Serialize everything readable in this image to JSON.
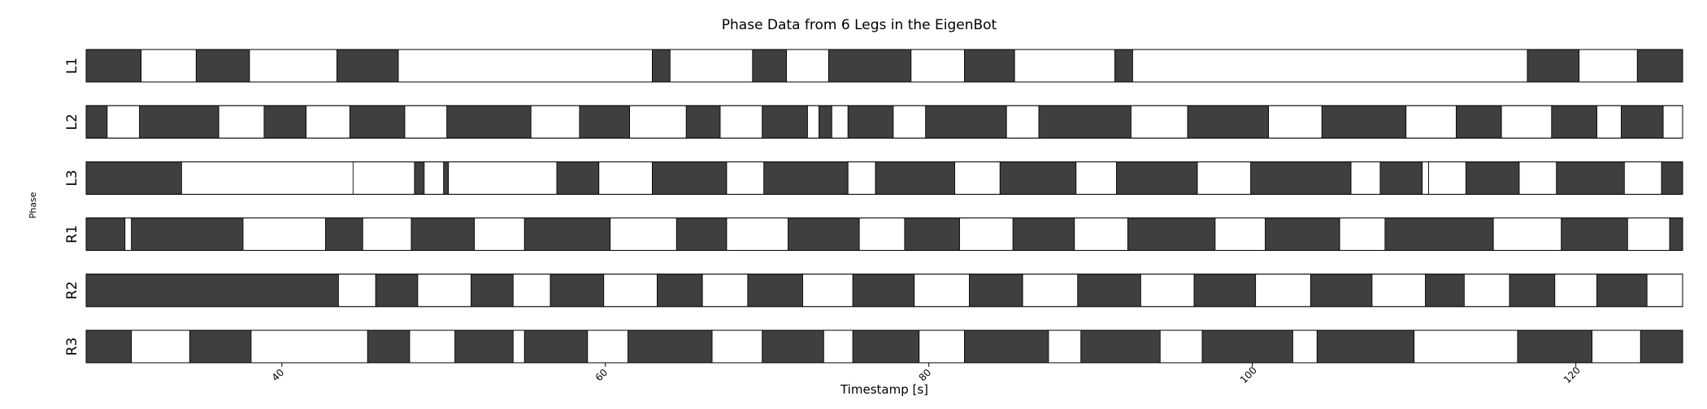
{
  "chart_data": {
    "type": "gantt-phase",
    "title": "Phase Data from 6 Legs in the EigenBot",
    "xlabel": "Timestamp [s]",
    "ylabel": "Phase",
    "xlim": [
      27.9,
      126.6
    ],
    "xticks": [
      40,
      60,
      80,
      100,
      120
    ],
    "grid": false,
    "legend": "none",
    "colors": {
      "stance": "#3f3f3f",
      "swing": "#ffffff",
      "edge": "#000000"
    },
    "series": [
      {
        "name": "L1",
        "segments": [
          [
            27.9,
            31.3,
            1
          ],
          [
            31.3,
            34.7,
            0
          ],
          [
            34.7,
            38.0,
            1
          ],
          [
            38.0,
            43.4,
            0
          ],
          [
            43.4,
            47.2,
            1
          ],
          [
            47.2,
            62.9,
            0
          ],
          [
            62.9,
            64.0,
            1
          ],
          [
            64.0,
            69.1,
            0
          ],
          [
            69.1,
            71.2,
            1
          ],
          [
            71.2,
            73.8,
            0
          ],
          [
            73.8,
            78.9,
            1
          ],
          [
            78.9,
            82.2,
            0
          ],
          [
            82.2,
            85.3,
            1
          ],
          [
            85.3,
            91.5,
            0
          ],
          [
            91.5,
            92.6,
            1
          ],
          [
            92.6,
            117.0,
            0
          ],
          [
            117.0,
            120.2,
            1
          ],
          [
            120.2,
            123.8,
            0
          ],
          [
            123.8,
            126.6,
            1
          ]
        ]
      },
      {
        "name": "L2",
        "segments": [
          [
            27.9,
            29.2,
            1
          ],
          [
            29.2,
            31.2,
            0
          ],
          [
            31.2,
            36.1,
            1
          ],
          [
            36.1,
            38.9,
            0
          ],
          [
            38.9,
            41.5,
            1
          ],
          [
            41.5,
            44.2,
            0
          ],
          [
            44.2,
            47.6,
            1
          ],
          [
            47.6,
            50.2,
            0
          ],
          [
            50.2,
            55.4,
            1
          ],
          [
            55.4,
            58.4,
            0
          ],
          [
            58.4,
            61.5,
            1
          ],
          [
            61.5,
            65.0,
            0
          ],
          [
            65.0,
            67.1,
            1
          ],
          [
            67.1,
            69.7,
            0
          ],
          [
            69.7,
            72.5,
            1
          ],
          [
            72.5,
            73.2,
            0
          ],
          [
            73.2,
            74.0,
            1
          ],
          [
            74.0,
            75.0,
            0
          ],
          [
            75.0,
            77.8,
            1
          ],
          [
            77.8,
            79.8,
            0
          ],
          [
            79.8,
            84.8,
            1
          ],
          [
            84.8,
            86.8,
            0
          ],
          [
            86.8,
            92.5,
            1
          ],
          [
            92.5,
            96.0,
            0
          ],
          [
            96.0,
            101.0,
            1
          ],
          [
            101.0,
            104.3,
            0
          ],
          [
            104.3,
            109.5,
            1
          ],
          [
            109.5,
            112.6,
            0
          ],
          [
            112.6,
            115.4,
            1
          ],
          [
            115.4,
            118.5,
            0
          ],
          [
            118.5,
            121.3,
            1
          ],
          [
            121.3,
            122.8,
            0
          ],
          [
            122.8,
            125.4,
            1
          ],
          [
            125.4,
            126.6,
            0
          ]
        ]
      },
      {
        "name": "L3",
        "segments": [
          [
            27.9,
            33.8,
            1
          ],
          [
            33.8,
            44.4,
            0
          ],
          [
            44.4,
            48.2,
            0
          ],
          [
            48.2,
            48.8,
            1
          ],
          [
            48.8,
            50.0,
            0
          ],
          [
            50.0,
            50.3,
            1
          ],
          [
            50.3,
            57.0,
            0
          ],
          [
            57.0,
            59.6,
            1
          ],
          [
            59.6,
            62.9,
            0
          ],
          [
            62.9,
            67.5,
            1
          ],
          [
            67.5,
            69.8,
            0
          ],
          [
            69.8,
            75.0,
            1
          ],
          [
            75.0,
            76.7,
            0
          ],
          [
            76.7,
            81.6,
            1
          ],
          [
            81.6,
            84.4,
            0
          ],
          [
            84.4,
            89.1,
            1
          ],
          [
            89.1,
            91.6,
            0
          ],
          [
            91.6,
            96.6,
            1
          ],
          [
            96.6,
            99.9,
            0
          ],
          [
            99.9,
            106.1,
            1
          ],
          [
            106.1,
            107.9,
            0
          ],
          [
            107.9,
            110.5,
            1
          ],
          [
            110.5,
            110.9,
            0
          ],
          [
            110.9,
            113.2,
            0
          ],
          [
            113.2,
            116.5,
            1
          ],
          [
            116.5,
            118.8,
            0
          ],
          [
            118.8,
            123.0,
            1
          ],
          [
            123.0,
            125.3,
            0
          ],
          [
            125.3,
            126.6,
            1
          ]
        ]
      },
      {
        "name": "R1",
        "segments": [
          [
            27.9,
            30.3,
            1
          ],
          [
            30.3,
            30.7,
            0
          ],
          [
            30.7,
            37.6,
            1
          ],
          [
            37.6,
            42.7,
            0
          ],
          [
            42.7,
            45.0,
            1
          ],
          [
            45.0,
            48.0,
            0
          ],
          [
            48.0,
            51.9,
            1
          ],
          [
            51.9,
            55.0,
            0
          ],
          [
            55.0,
            60.3,
            1
          ],
          [
            60.3,
            64.4,
            0
          ],
          [
            64.4,
            67.5,
            1
          ],
          [
            67.5,
            71.3,
            0
          ],
          [
            71.3,
            75.7,
            1
          ],
          [
            75.7,
            78.5,
            0
          ],
          [
            78.5,
            81.9,
            1
          ],
          [
            81.9,
            85.2,
            0
          ],
          [
            85.2,
            89.0,
            1
          ],
          [
            89.0,
            92.3,
            0
          ],
          [
            92.3,
            97.7,
            1
          ],
          [
            97.7,
            100.8,
            0
          ],
          [
            100.8,
            105.4,
            1
          ],
          [
            105.4,
            108.2,
            0
          ],
          [
            108.2,
            114.9,
            1
          ],
          [
            114.9,
            119.1,
            0
          ],
          [
            119.1,
            123.2,
            1
          ],
          [
            123.2,
            125.8,
            0
          ],
          [
            125.8,
            126.6,
            1
          ]
        ]
      },
      {
        "name": "R2",
        "segments": [
          [
            27.9,
            43.5,
            1
          ],
          [
            43.5,
            45.8,
            0
          ],
          [
            45.8,
            48.4,
            1
          ],
          [
            48.4,
            51.7,
            0
          ],
          [
            51.7,
            54.3,
            1
          ],
          [
            54.3,
            56.6,
            0
          ],
          [
            56.6,
            59.9,
            1
          ],
          [
            59.9,
            63.2,
            0
          ],
          [
            63.2,
            66.0,
            1
          ],
          [
            66.0,
            68.8,
            0
          ],
          [
            68.8,
            72.2,
            1
          ],
          [
            72.2,
            75.3,
            0
          ],
          [
            75.3,
            79.1,
            1
          ],
          [
            79.1,
            82.5,
            0
          ],
          [
            82.5,
            85.8,
            1
          ],
          [
            85.8,
            89.2,
            0
          ],
          [
            89.2,
            93.1,
            1
          ],
          [
            93.1,
            96.4,
            0
          ],
          [
            96.4,
            100.2,
            1
          ],
          [
            100.2,
            103.6,
            0
          ],
          [
            103.6,
            107.4,
            1
          ],
          [
            107.4,
            110.7,
            0
          ],
          [
            110.7,
            113.1,
            1
          ],
          [
            113.1,
            115.9,
            0
          ],
          [
            115.9,
            118.7,
            1
          ],
          [
            118.7,
            121.3,
            0
          ],
          [
            121.3,
            124.4,
            1
          ],
          [
            124.4,
            126.6,
            0
          ]
        ]
      },
      {
        "name": "R3",
        "segments": [
          [
            27.9,
            30.7,
            1
          ],
          [
            30.7,
            34.3,
            0
          ],
          [
            34.3,
            38.1,
            1
          ],
          [
            38.1,
            45.3,
            0
          ],
          [
            45.3,
            47.9,
            1
          ],
          [
            47.9,
            50.7,
            0
          ],
          [
            50.7,
            54.3,
            1
          ],
          [
            54.3,
            55.0,
            0
          ],
          [
            55.0,
            58.9,
            1
          ],
          [
            58.9,
            61.4,
            0
          ],
          [
            61.4,
            66.6,
            1
          ],
          [
            66.6,
            69.7,
            0
          ],
          [
            69.7,
            73.5,
            1
          ],
          [
            73.5,
            75.3,
            0
          ],
          [
            75.3,
            79.4,
            1
          ],
          [
            79.4,
            82.2,
            0
          ],
          [
            82.2,
            87.4,
            1
          ],
          [
            87.4,
            89.4,
            0
          ],
          [
            89.4,
            94.3,
            1
          ],
          [
            94.3,
            96.9,
            0
          ],
          [
            96.9,
            102.5,
            1
          ],
          [
            102.5,
            104.0,
            0
          ],
          [
            104.0,
            110.0,
            1
          ],
          [
            110.0,
            116.4,
            0
          ],
          [
            116.4,
            121.0,
            1
          ],
          [
            121.0,
            124.0,
            0
          ],
          [
            124.0,
            126.6,
            1
          ]
        ]
      }
    ]
  }
}
